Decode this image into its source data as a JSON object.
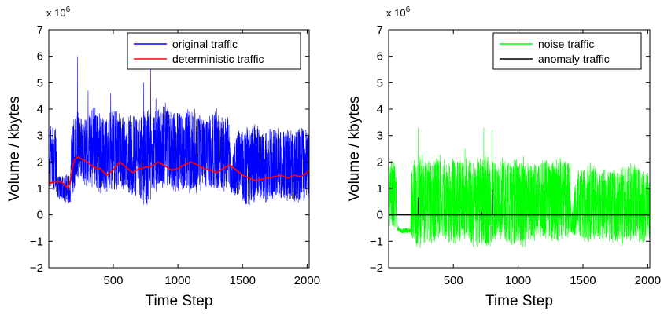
{
  "chart_data": [
    {
      "type": "line",
      "title": "",
      "xlabel": "Time Step",
      "ylabel": "Volume / kbytes",
      "y_multiplier_label": "x 10",
      "y_multiplier_exp": "6",
      "xlim": [
        1,
        2016
      ],
      "ylim": [
        -2,
        7
      ],
      "xticks": [
        500,
        1000,
        1500,
        2000
      ],
      "yticks": [
        -2,
        -1,
        0,
        1,
        2,
        3,
        4,
        5,
        6,
        7
      ],
      "grid": false,
      "legend_position": "top-right",
      "series": [
        {
          "name": "original traffic",
          "color": "#0000ff",
          "style": "oscillating",
          "x": [
            1,
            20,
            60,
            61,
            70,
            100,
            170,
            175,
            200,
            220,
            240,
            260,
            300,
            350,
            400,
            450,
            500,
            550,
            600,
            650,
            700,
            750,
            790,
            800,
            850,
            900,
            950,
            1000,
            1050,
            1100,
            1150,
            1200,
            1250,
            1300,
            1350,
            1400,
            1410,
            1450,
            1500,
            1550,
            1600,
            1650,
            1700,
            1750,
            1800,
            1850,
            1900,
            1950,
            2000,
            2016
          ],
          "low": [
            0.8,
            0.8,
            0.8,
            1.2,
            0.6,
            0.5,
            0.4,
            0.6,
            1.0,
            1.2,
            1.2,
            1.1,
            1.0,
            1.0,
            0.8,
            0.7,
            0.8,
            1.0,
            0.9,
            0.7,
            0.6,
            0.3,
            0.5,
            0.8,
            0.9,
            1.0,
            0.9,
            0.8,
            0.9,
            0.7,
            0.8,
            0.9,
            0.8,
            0.7,
            0.8,
            0.9,
            0.8,
            0.6,
            0.4,
            0.3,
            0.4,
            0.5,
            0.4,
            0.5,
            0.4,
            0.5,
            0.4,
            0.4,
            0.6,
            0.6
          ],
          "high": [
            3.4,
            3.5,
            3.3,
            1.2,
            1.5,
            1.5,
            1.6,
            3.2,
            3.8,
            4.0,
            3.8,
            3.6,
            3.9,
            4.2,
            3.8,
            3.6,
            4.2,
            3.9,
            3.6,
            4.0,
            3.7,
            4.2,
            3.9,
            3.8,
            4.2,
            4.3,
            3.9,
            4.1,
            3.8,
            4.2,
            3.9,
            3.7,
            3.8,
            4.1,
            3.7,
            3.9,
            1.6,
            3.2,
            3.4,
            3.3,
            3.6,
            3.1,
            3.3,
            3.4,
            3.2,
            3.3,
            3.2,
            3.3,
            3.3,
            3.2
          ],
          "spikes": [
            [
              222,
              6.0
            ],
            [
              305,
              4.7
            ],
            [
              480,
              4.6
            ],
            [
              735,
              5.0
            ],
            [
              790,
              5.5
            ],
            [
              830,
              4.4
            ],
            [
              1290,
              3.9
            ]
          ]
        },
        {
          "name": "deterministic traffic",
          "color": "#ff0000",
          "style": "line",
          "x": [
            1,
            50,
            100,
            130,
            150,
            170,
            185,
            200,
            230,
            260,
            300,
            350,
            400,
            450,
            500,
            550,
            600,
            650,
            700,
            750,
            800,
            850,
            900,
            950,
            1000,
            1050,
            1100,
            1150,
            1200,
            1250,
            1300,
            1350,
            1400,
            1450,
            1500,
            1550,
            1600,
            1650,
            1700,
            1750,
            1800,
            1850,
            1900,
            1950,
            2000,
            2016
          ],
          "y": [
            1.2,
            1.25,
            1.25,
            1.1,
            1.0,
            1.3,
            1.8,
            2.1,
            2.2,
            2.1,
            2.0,
            1.8,
            1.75,
            1.5,
            1.7,
            2.0,
            1.8,
            1.6,
            1.75,
            1.8,
            1.85,
            2.0,
            1.85,
            1.7,
            1.75,
            1.9,
            2.0,
            1.9,
            1.75,
            1.7,
            1.6,
            1.75,
            1.9,
            1.7,
            1.5,
            1.4,
            1.3,
            1.35,
            1.4,
            1.45,
            1.5,
            1.4,
            1.5,
            1.45,
            1.6,
            1.7
          ]
        }
      ]
    },
    {
      "type": "line",
      "title": "",
      "xlabel": "Time Step",
      "ylabel": "Volume / kbytes",
      "y_multiplier_label": "x 10",
      "y_multiplier_exp": "6",
      "xlim": [
        1,
        2016
      ],
      "ylim": [
        -2,
        7
      ],
      "xticks": [
        500,
        1000,
        1500,
        2000
      ],
      "yticks": [
        -2,
        -1,
        0,
        1,
        2,
        3,
        4,
        5,
        6,
        7
      ],
      "grid": false,
      "legend_position": "top-right",
      "series": [
        {
          "name": "noise traffic",
          "color": "#00ff00",
          "style": "oscillating",
          "x": [
            1,
            20,
            60,
            61,
            70,
            100,
            170,
            175,
            200,
            250,
            300,
            350,
            400,
            450,
            500,
            550,
            600,
            650,
            700,
            750,
            800,
            850,
            900,
            950,
            1000,
            1050,
            1100,
            1150,
            1200,
            1250,
            1300,
            1350,
            1400,
            1410,
            1450,
            1500,
            1550,
            1600,
            1650,
            1700,
            1750,
            1800,
            1850,
            1900,
            1950,
            2000,
            2016
          ],
          "low": [
            -0.4,
            -0.5,
            -0.5,
            0.0,
            -0.6,
            -0.7,
            -0.7,
            -0.9,
            -1.2,
            -1.3,
            -1.2,
            -1.1,
            -1.0,
            -1.1,
            -1.2,
            -1.1,
            -1.0,
            -1.2,
            -1.4,
            -1.3,
            -1.2,
            -1.0,
            -1.1,
            -1.2,
            -1.1,
            -1.3,
            -1.1,
            -1.0,
            -0.9,
            -1.0,
            -1.1,
            -1.0,
            -0.9,
            -0.7,
            -1.0,
            -1.0,
            -1.1,
            -1.0,
            -1.1,
            -1.0,
            -1.1,
            -1.2,
            -1.1,
            -1.0,
            -1.1,
            -1.1,
            -1.0
          ],
          "high": [
            2.0,
            2.1,
            2.0,
            0.0,
            -0.4,
            -0.5,
            -0.5,
            1.8,
            2.2,
            2.4,
            2.0,
            2.2,
            2.3,
            2.0,
            2.3,
            2.1,
            2.2,
            2.0,
            2.2,
            2.3,
            2.1,
            2.0,
            2.3,
            2.1,
            2.2,
            2.3,
            2.0,
            2.1,
            2.3,
            2.0,
            2.2,
            2.2,
            2.0,
            0.0,
            1.8,
            1.9,
            2.0,
            1.9,
            1.8,
            1.9,
            1.8,
            1.9,
            2.0,
            1.9,
            1.8,
            1.7,
            1.6
          ],
          "spikes": [
            [
              230,
              3.3
            ],
            [
              590,
              2.5
            ],
            [
              735,
              3.3
            ],
            [
              800,
              3.2
            ]
          ]
        },
        {
          "name": "anomaly traffic",
          "color": "#000000",
          "style": "line",
          "x": [
            1,
            229,
            230,
            231,
            718,
            719,
            720,
            799,
            800,
            801,
            2016
          ],
          "y": [
            0,
            0,
            0.65,
            0,
            0,
            0.1,
            0,
            0,
            0.95,
            0,
            0
          ]
        }
      ]
    }
  ]
}
